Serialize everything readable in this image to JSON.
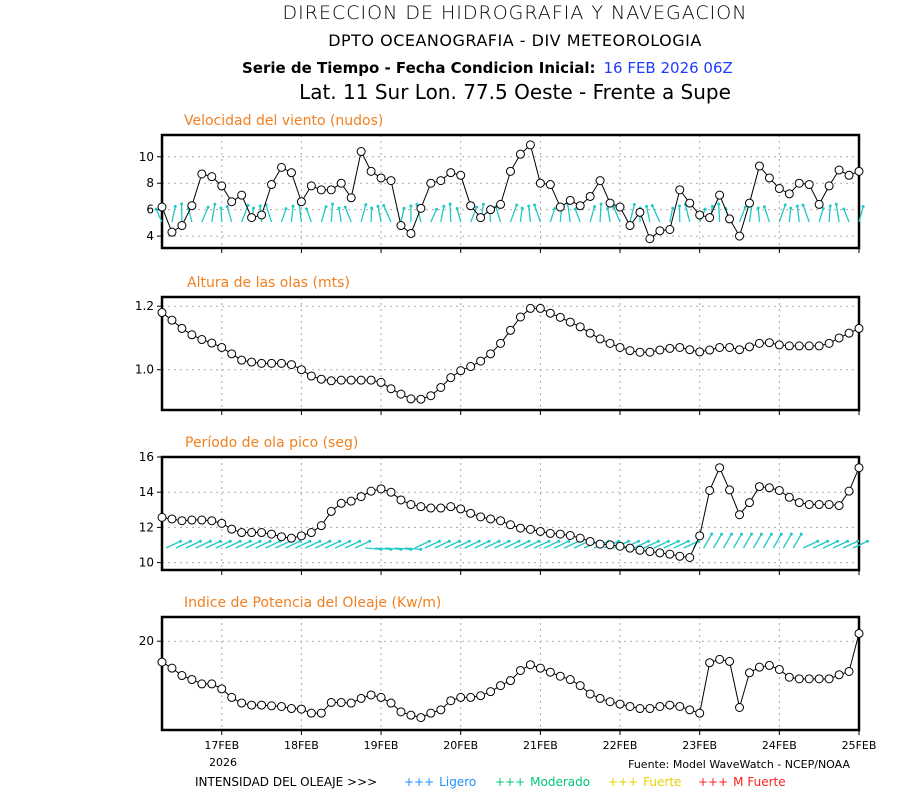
{
  "header": {
    "line1": "DIRECCION DE HIDROGRAFIA Y NAVEGACION",
    "line2": "DPTO OCEANOGRAFIA - DIV METEOROLOGIA",
    "line3_label": "Serie de Tiempo - Fecha Condicion Inicial:",
    "line3_date": "16 FEB 2026 06Z",
    "line4": "Lat. 11 Sur  Lon. 77.5 Oeste - Frente a Supe"
  },
  "xaxis": {
    "start": "16FEB2026 06Z",
    "step_hours": 3,
    "range_hours": [
      0,
      210
    ],
    "tick_hours": [
      18,
      42,
      66,
      90,
      114,
      138,
      162,
      186,
      210
    ],
    "tick_labels": [
      "17FEB",
      "18FEB",
      "19FEB",
      "20FEB",
      "21FEB",
      "22FEB",
      "23FEB",
      "24FEB",
      "25FEB"
    ],
    "year_label": "2026"
  },
  "footer": {
    "source": "Fuente: Model WaveWatch - NCEP/NOAA",
    "legend_title": "INTENSIDAD DEL OLEAJE >>>",
    "legend": [
      {
        "marker": "+++",
        "label": "Ligero",
        "color": "#1e90ff"
      },
      {
        "marker": "+++",
        "label": "Moderado",
        "color": "#00c878"
      },
      {
        "marker": "+++",
        "label": "Fuerte",
        "color": "#e6d200"
      },
      {
        "marker": "+++",
        "label": "M Fuerte",
        "color": "#ff2020"
      }
    ]
  },
  "colors": {
    "title": "#f08020",
    "arrows": "#20c8c8",
    "line": "#000000"
  },
  "chart_data": [
    {
      "type": "line",
      "title": "Velocidad del viento (nudos)",
      "ylim": [
        3.1,
        11.65
      ],
      "yticks": [
        4,
        6,
        8,
        10
      ],
      "ytick_labels": [
        "4",
        "6",
        "8",
        "10"
      ],
      "arrows": "wind",
      "values": [
        6.2,
        4.3,
        4.8,
        6.3,
        8.7,
        8.5,
        7.8,
        6.6,
        7.1,
        5.4,
        5.6,
        7.9,
        9.2,
        8.8,
        6.6,
        7.8,
        7.5,
        7.5,
        8.0,
        6.9,
        10.4,
        8.9,
        8.4,
        8.2,
        4.8,
        4.2,
        6.1,
        8.0,
        8.2,
        8.8,
        8.6,
        6.3,
        5.4,
        6.0,
        6.4,
        8.9,
        10.2,
        10.9,
        8.0,
        7.9,
        6.2,
        6.7,
        6.3,
        7.0,
        8.2,
        6.5,
        6.2,
        4.8,
        5.8,
        3.8,
        4.4,
        4.5,
        7.5,
        6.5,
        5.6,
        5.4,
        7.1,
        5.3,
        4.0,
        6.5,
        9.3,
        8.4,
        7.6,
        7.2,
        8.0,
        7.9,
        6.4,
        7.8,
        9.0,
        8.6,
        8.9
      ]
    },
    {
      "type": "line",
      "title": "Altura de las olas (mts)",
      "ylim": [
        0.873,
        1.229
      ],
      "yticks": [
        1.0,
        1.2
      ],
      "ytick_labels": [
        "1.0",
        "1.2"
      ],
      "values": [
        1.18,
        1.156,
        1.13,
        1.11,
        1.095,
        1.084,
        1.07,
        1.05,
        1.03,
        1.024,
        1.02,
        1.02,
        1.02,
        1.016,
        1.0,
        0.98,
        0.97,
        0.965,
        0.967,
        0.967,
        0.967,
        0.967,
        0.96,
        0.94,
        0.923,
        0.908,
        0.907,
        0.918,
        0.944,
        0.975,
        0.997,
        1.01,
        1.027,
        1.05,
        1.083,
        1.124,
        1.166,
        1.193,
        1.193,
        1.178,
        1.165,
        1.15,
        1.135,
        1.115,
        1.097,
        1.083,
        1.07,
        1.06,
        1.055,
        1.055,
        1.062,
        1.067,
        1.07,
        1.063,
        1.056,
        1.062,
        1.07,
        1.07,
        1.063,
        1.072,
        1.083,
        1.085,
        1.078,
        1.075,
        1.075,
        1.075,
        1.075,
        1.083,
        1.1,
        1.115,
        1.13
      ]
    },
    {
      "type": "line",
      "title": "Período de ola pico (seg)",
      "ylim": [
        9.58,
        16
      ],
      "yticks": [
        10,
        12,
        14,
        16
      ],
      "ytick_labels": [
        "10",
        "12",
        "14",
        "16"
      ],
      "arrows": "wave",
      "values": [
        12.57,
        12.48,
        12.38,
        12.42,
        12.42,
        12.38,
        12.23,
        11.9,
        11.71,
        11.71,
        11.71,
        11.62,
        11.47,
        11.39,
        11.52,
        11.71,
        12.1,
        12.91,
        13.37,
        13.49,
        13.75,
        14.06,
        14.19,
        14.0,
        13.56,
        13.3,
        13.18,
        13.1,
        13.1,
        13.18,
        13.05,
        12.8,
        12.6,
        12.48,
        12.38,
        12.15,
        11.96,
        11.89,
        11.77,
        11.66,
        11.62,
        11.54,
        11.39,
        11.2,
        11.05,
        11.01,
        10.93,
        10.82,
        10.7,
        10.63,
        10.55,
        10.48,
        10.36,
        10.29,
        11.52,
        14.1,
        15.39,
        14.13,
        12.72,
        13.41,
        14.32,
        14.25,
        14.1,
        13.71,
        13.41,
        13.3,
        13.3,
        13.3,
        13.24,
        14.06,
        15.39
      ]
    },
    {
      "type": "line",
      "title": "Indice de Potencia del Oleaje (Kw/m)",
      "ylim": [
        11.2,
        22.4
      ],
      "yticks": [
        20
      ],
      "ytick_labels": [
        "20"
      ],
      "values": [
        17.93,
        17.33,
        16.6,
        16.2,
        15.77,
        15.77,
        15.27,
        14.43,
        13.87,
        13.67,
        13.67,
        13.6,
        13.53,
        13.33,
        13.27,
        12.87,
        12.87,
        13.93,
        13.93,
        13.87,
        14.33,
        14.67,
        14.43,
        13.87,
        13.0,
        12.67,
        12.43,
        12.87,
        13.2,
        14.1,
        14.43,
        14.43,
        14.6,
        15.0,
        15.6,
        16.1,
        17.1,
        17.67,
        17.33,
        16.93,
        16.53,
        16.2,
        15.6,
        14.77,
        14.33,
        14.0,
        13.77,
        13.53,
        13.33,
        13.33,
        13.53,
        13.67,
        13.53,
        13.2,
        12.87,
        17.87,
        18.2,
        18.0,
        13.43,
        16.87,
        17.43,
        17.6,
        17.2,
        16.43,
        16.27,
        16.27,
        16.27,
        16.27,
        16.67,
        17.0,
        20.77
      ]
    }
  ]
}
